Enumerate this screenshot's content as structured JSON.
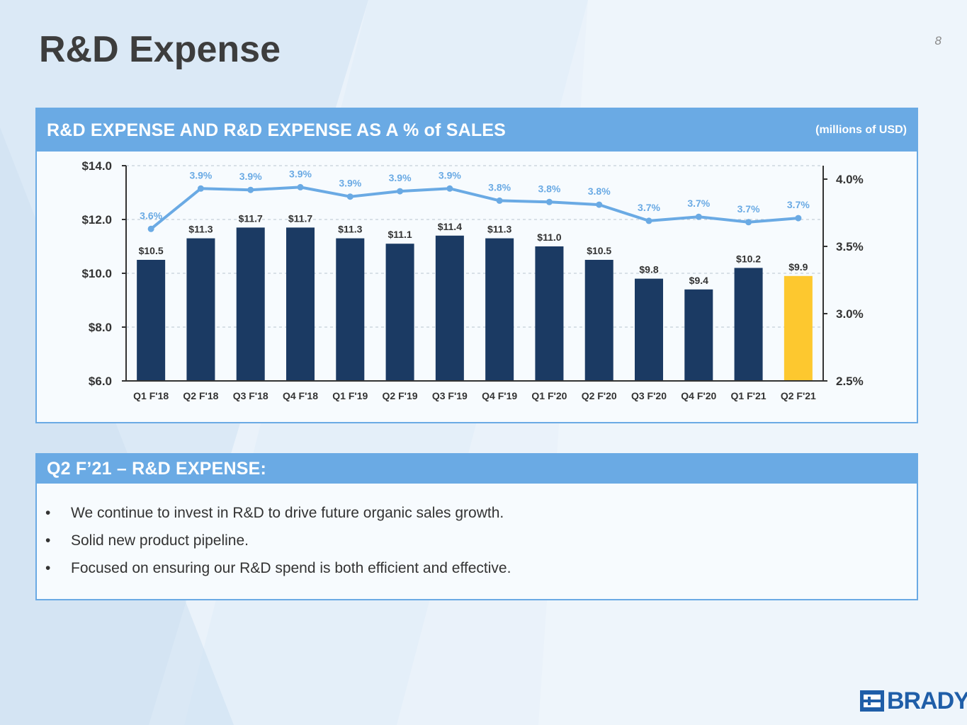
{
  "page": {
    "title": "R&D Expense",
    "page_number": "8"
  },
  "colors": {
    "bar": "#1b3a63",
    "bar_highlight": "#fdc82f",
    "line": "#6aaae4",
    "header": "#6aaae4",
    "brand": "#1f5ea8"
  },
  "chart_panel": {
    "title": "R&D EXPENSE AND R&D EXPENSE AS A % of SALES",
    "unit_note": "(millions of USD)"
  },
  "chart_data": {
    "type": "bar",
    "categories": [
      "Q1 F'18",
      "Q2 F'18",
      "Q3 F'18",
      "Q4 F'18",
      "Q1 F'19",
      "Q2 F'19",
      "Q3 F'19",
      "Q4 F'19",
      "Q1 F'20",
      "Q2 F'20",
      "Q3 F'20",
      "Q4 F'20",
      "Q1 F'21",
      "Q2 F'21"
    ],
    "series": [
      {
        "type": "bar",
        "values": [
          10.5,
          11.3,
          11.7,
          11.7,
          11.3,
          11.1,
          11.4,
          11.3,
          11.0,
          10.5,
          9.8,
          9.4,
          10.2,
          9.9
        ],
        "labels": [
          "$10.5",
          "$11.3",
          "$11.7",
          "$11.7",
          "$11.3",
          "$11.1",
          "$11.4",
          "$11.3",
          "$11.0",
          "$10.5",
          "$9.8",
          "$9.4",
          "$10.2",
          "$9.9"
        ],
        "highlight_index": 13,
        "axis": "left"
      },
      {
        "type": "line",
        "values": [
          3.63,
          3.93,
          3.92,
          3.94,
          3.87,
          3.91,
          3.93,
          3.84,
          3.83,
          3.81,
          3.69,
          3.72,
          3.68,
          3.71
        ],
        "labels": [
          "3.6%",
          "3.9%",
          "3.9%",
          "3.9%",
          "3.9%",
          "3.9%",
          "3.9%",
          "3.8%",
          "3.8%",
          "3.8%",
          "3.7%",
          "3.7%",
          "3.7%",
          "3.7%"
        ],
        "axis": "right"
      }
    ],
    "y_left": {
      "min": 6.0,
      "max": 14.0,
      "ticks": [
        14.0,
        12.0,
        10.0,
        8.0,
        6.0
      ],
      "tick_labels": [
        "$14.0",
        "$12.0",
        "$10.0",
        "$8.0",
        "$6.0"
      ]
    },
    "y_right": {
      "min": 2.5,
      "max": 4.1,
      "ticks": [
        4.0,
        3.5,
        3.0,
        2.5
      ],
      "tick_labels": [
        "4.0%",
        "3.5%",
        "3.0%",
        "2.5%"
      ]
    },
    "grid": "dashed-horizontal",
    "legend": "none"
  },
  "notes_panel": {
    "title": "Q2 F’21 – R&D EXPENSE:",
    "bullet_char": "•",
    "bullets": [
      "We continue to invest in R&D to drive future organic sales growth.",
      "Solid new product pipeline.",
      "Focused on ensuring our R&D spend is both efficient and effective."
    ]
  },
  "brand": {
    "logo_text": "BRADY",
    "logo_icon": "brady-logo-icon"
  }
}
